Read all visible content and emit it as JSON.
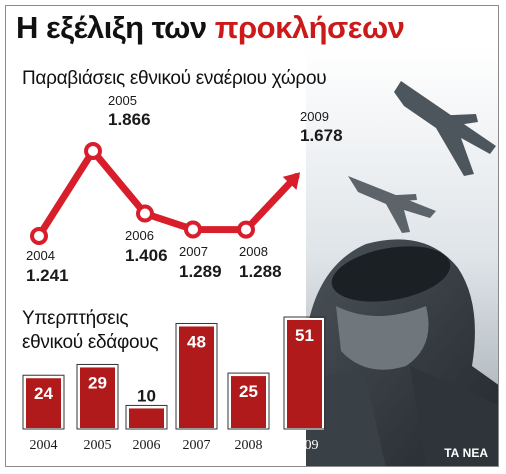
{
  "header": {
    "title_part1": "Η εξέλιξη των",
    "title_part2": "προκλήσεων",
    "credit": "ΤΑ ΝΕΑ"
  },
  "colors": {
    "accent": "#cc1a1a",
    "bar": "#b01a1a",
    "line": "#d81e2a"
  },
  "chart_data": [
    {
      "type": "line",
      "title": "Παραβιάσεις εθνικού εναέριου χώρου",
      "x": [
        "2004",
        "2005",
        "2006",
        "2007",
        "2008",
        "2009"
      ],
      "series": [
        {
          "values": [
            1241,
            1866,
            1406,
            1289,
            1288,
            1678
          ],
          "labels": [
            "1.241",
            "1.866",
            "1.406",
            "1.289",
            "1.288",
            "1.678"
          ]
        }
      ]
    },
    {
      "type": "bar",
      "title": "Υπερπτήσεις εθνικού εδάφους",
      "categories": [
        "2004",
        "2005",
        "2006",
        "2007",
        "2008",
        "2009"
      ],
      "values": [
        24,
        29,
        10,
        48,
        25,
        51
      ]
    }
  ]
}
